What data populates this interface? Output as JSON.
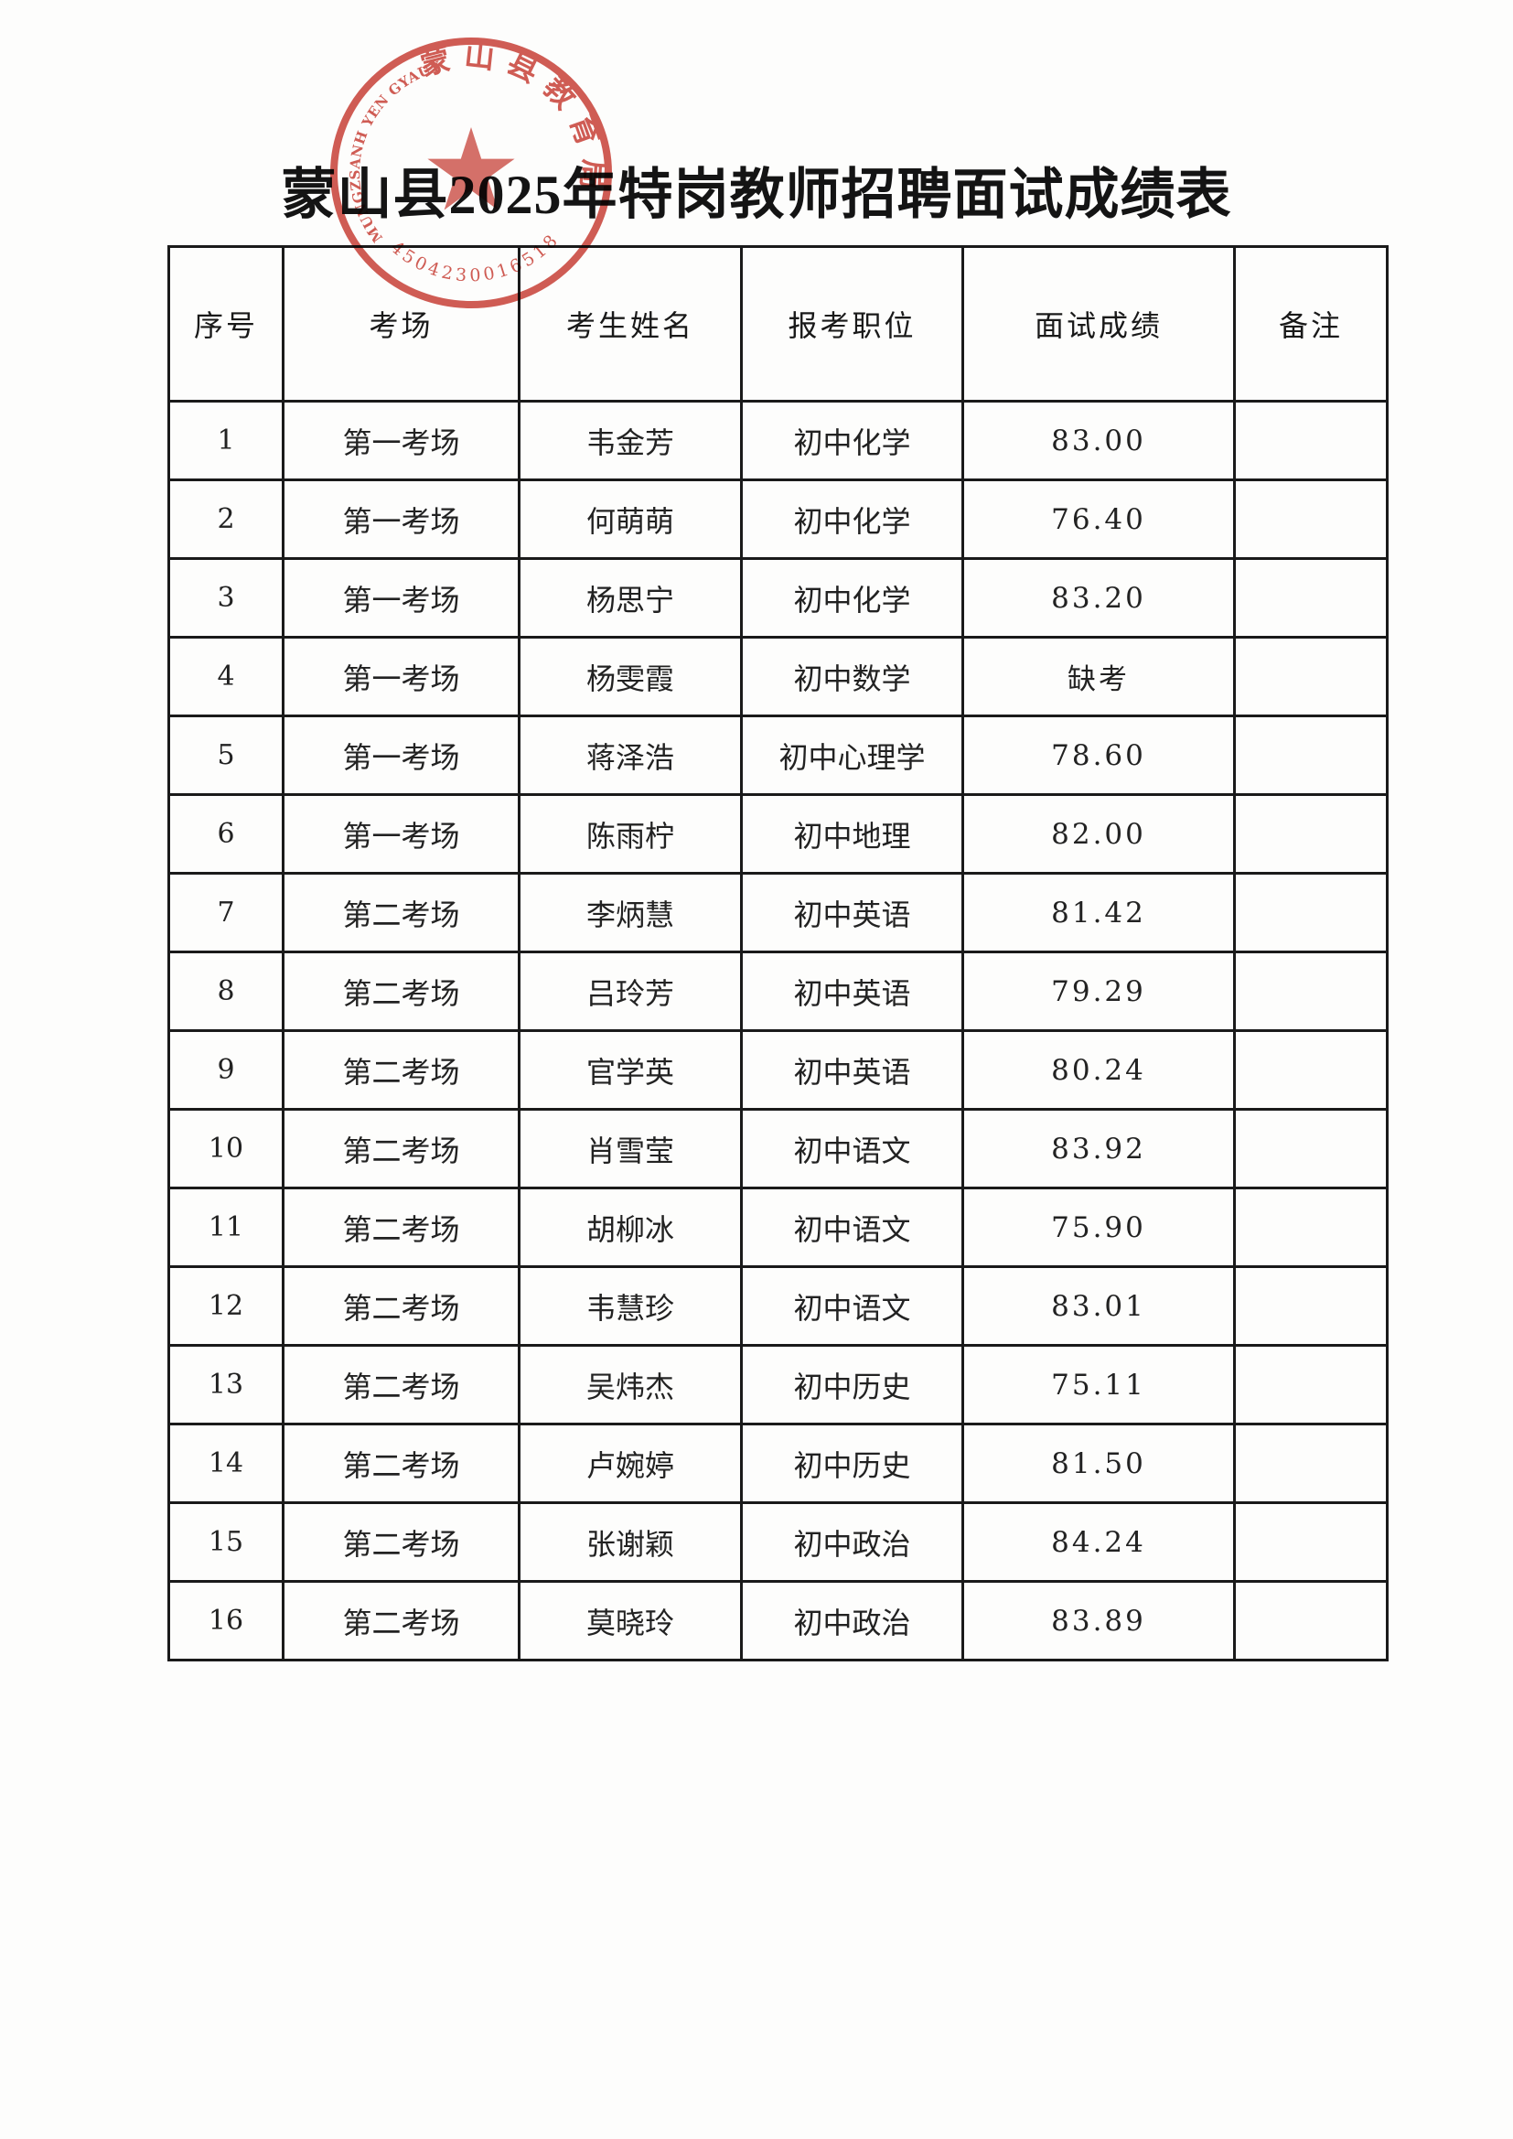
{
  "page": {
    "title": "蒙山县2025年特岗教师招聘面试成绩表"
  },
  "seal": {
    "org_chinese": "蒙山县教育局",
    "org_latin": "MUNGZSANH YEN GYAUYUZ GIZ",
    "serial_number": "4504230016518",
    "color": "#cc4b42"
  },
  "table": {
    "headers": [
      "序号",
      "考场",
      "考生姓名",
      "报考职位",
      "面试成绩",
      "备注"
    ],
    "rows": [
      {
        "no": "1",
        "room": "第一考场",
        "name": "韦金芳",
        "position": "初中化学",
        "score": "83.00",
        "remark": ""
      },
      {
        "no": "2",
        "room": "第一考场",
        "name": "何萌萌",
        "position": "初中化学",
        "score": "76.40",
        "remark": ""
      },
      {
        "no": "3",
        "room": "第一考场",
        "name": "杨思宁",
        "position": "初中化学",
        "score": "83.20",
        "remark": ""
      },
      {
        "no": "4",
        "room": "第一考场",
        "name": "杨雯霞",
        "position": "初中数学",
        "score": "缺考",
        "remark": ""
      },
      {
        "no": "5",
        "room": "第一考场",
        "name": "蒋泽浩",
        "position": "初中心理学",
        "score": "78.60",
        "remark": ""
      },
      {
        "no": "6",
        "room": "第一考场",
        "name": "陈雨柠",
        "position": "初中地理",
        "score": "82.00",
        "remark": ""
      },
      {
        "no": "7",
        "room": "第二考场",
        "name": "李炳慧",
        "position": "初中英语",
        "score": "81.42",
        "remark": ""
      },
      {
        "no": "8",
        "room": "第二考场",
        "name": "吕玲芳",
        "position": "初中英语",
        "score": "79.29",
        "remark": ""
      },
      {
        "no": "9",
        "room": "第二考场",
        "name": "官学英",
        "position": "初中英语",
        "score": "80.24",
        "remark": ""
      },
      {
        "no": "10",
        "room": "第二考场",
        "name": "肖雪莹",
        "position": "初中语文",
        "score": "83.92",
        "remark": ""
      },
      {
        "no": "11",
        "room": "第二考场",
        "name": "胡柳冰",
        "position": "初中语文",
        "score": "75.90",
        "remark": ""
      },
      {
        "no": "12",
        "room": "第二考场",
        "name": "韦慧珍",
        "position": "初中语文",
        "score": "83.01",
        "remark": ""
      },
      {
        "no": "13",
        "room": "第二考场",
        "name": "吴炜杰",
        "position": "初中历史",
        "score": "75.11",
        "remark": ""
      },
      {
        "no": "14",
        "room": "第二考场",
        "name": "卢婉婷",
        "position": "初中历史",
        "score": "81.50",
        "remark": ""
      },
      {
        "no": "15",
        "room": "第二考场",
        "name": "张谢颖",
        "position": "初中政治",
        "score": "84.24",
        "remark": ""
      },
      {
        "no": "16",
        "room": "第二考场",
        "name": "莫晓玲",
        "position": "初中政治",
        "score": "83.89",
        "remark": ""
      }
    ]
  }
}
